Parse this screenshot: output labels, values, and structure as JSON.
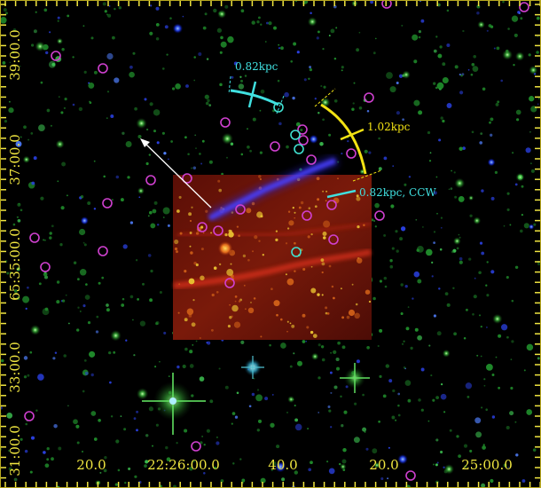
{
  "image": {
    "kind": "astronomical three-colour composite",
    "colors": {
      "background": "#000000",
      "frame_ticks": "#f0e640",
      "tick_labels": "#f0e640",
      "arc_scale_cyan": "#40e0e0",
      "arc_scale_yellow": "#f2e213",
      "arrow": "#ffffff",
      "magenta_markers": "#d040d0",
      "cyan_markers": "#40e0d0",
      "jet": "#3a2ee8",
      "inset": "#7a1208"
    }
  },
  "axes": {
    "ra_labels": [
      "20.0",
      "22:26:00.0",
      "40.0",
      "20.0",
      "25:00.0"
    ],
    "dec_labels": [
      "39:00.0",
      "37:00.0",
      "65:35:00.0",
      "33:00.0",
      "31:00.0"
    ]
  },
  "annotations": {
    "scale_upper": "0.82kpc",
    "scale_right": "1.02kpc",
    "scale_ccw": "0.82kpc, CCW"
  },
  "icons": [
    "direction-arrow-icon",
    "magenta-circle-icon",
    "cyan-circle-icon"
  ]
}
